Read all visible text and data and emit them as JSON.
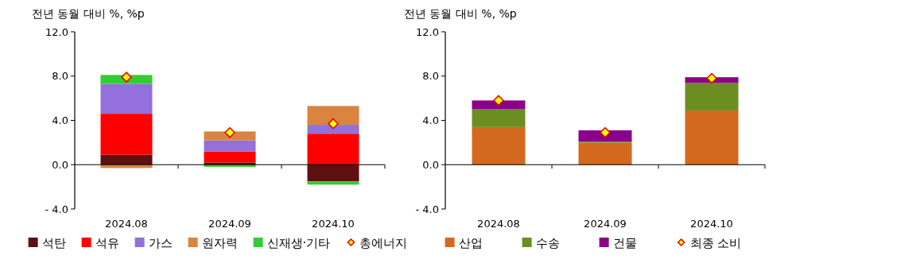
{
  "chart_data": [
    {
      "type": "bar",
      "stacked": true,
      "ylabel": "전년 동월 대비 %, %p",
      "categories": [
        "2024.08",
        "2024.09",
        "2024.10"
      ],
      "ylim": [
        -4,
        12
      ],
      "yticks": [
        {
          "value": -4,
          "label": "- 4.0"
        },
        {
          "value": 0,
          "label": "0.0"
        },
        {
          "value": 4,
          "label": "4.0"
        },
        {
          "value": 8,
          "label": "8.0"
        },
        {
          "value": 12,
          "label": "12.0"
        }
      ],
      "legend": "bottom",
      "series": [
        {
          "name": "석탄",
          "color": "#5c1010",
          "values": [
            0.9,
            0.2,
            -1.5
          ]
        },
        {
          "name": "석유",
          "color": "#ff0000",
          "values": [
            3.7,
            1.0,
            2.8
          ]
        },
        {
          "name": "가스",
          "color": "#9370db",
          "values": [
            2.7,
            1.0,
            0.8
          ]
        },
        {
          "name": "원자력",
          "color": "#d9843f",
          "values": [
            -0.3,
            0.8,
            1.7
          ]
        },
        {
          "name": "신재생·기타",
          "color": "#33cc33",
          "values": [
            0.8,
            -0.2,
            -0.3
          ]
        },
        {
          "name": "총에너지",
          "type": "scatter",
          "marker": "diamond",
          "color": "#ffff00",
          "values": [
            7.9,
            2.9,
            3.7
          ]
        }
      ]
    },
    {
      "type": "bar",
      "stacked": true,
      "ylabel": "전년 동월 대비 %, %p",
      "categories": [
        "2024.08",
        "2024.09",
        "2024.10"
      ],
      "ylim": [
        -4,
        12
      ],
      "yticks": [
        {
          "value": -4,
          "label": "- 4.0"
        },
        {
          "value": 0,
          "label": "0.0"
        },
        {
          "value": 4,
          "label": "4.0"
        },
        {
          "value": 8,
          "label": "8.0"
        },
        {
          "value": 12,
          "label": "12.0"
        }
      ],
      "legend": "bottom",
      "series": [
        {
          "name": "산업",
          "color": "#d2691e",
          "values": [
            3.4,
            2.0,
            4.9
          ]
        },
        {
          "name": "수송",
          "color": "#6b8e23",
          "values": [
            1.6,
            0.1,
            2.5
          ]
        },
        {
          "name": "건물",
          "color": "#8b008b",
          "values": [
            0.8,
            1.0,
            0.5
          ]
        },
        {
          "name": "최종 소비",
          "type": "scatter",
          "marker": "diamond",
          "color": "#ffff00",
          "values": [
            5.8,
            2.9,
            7.8
          ]
        }
      ]
    }
  ]
}
